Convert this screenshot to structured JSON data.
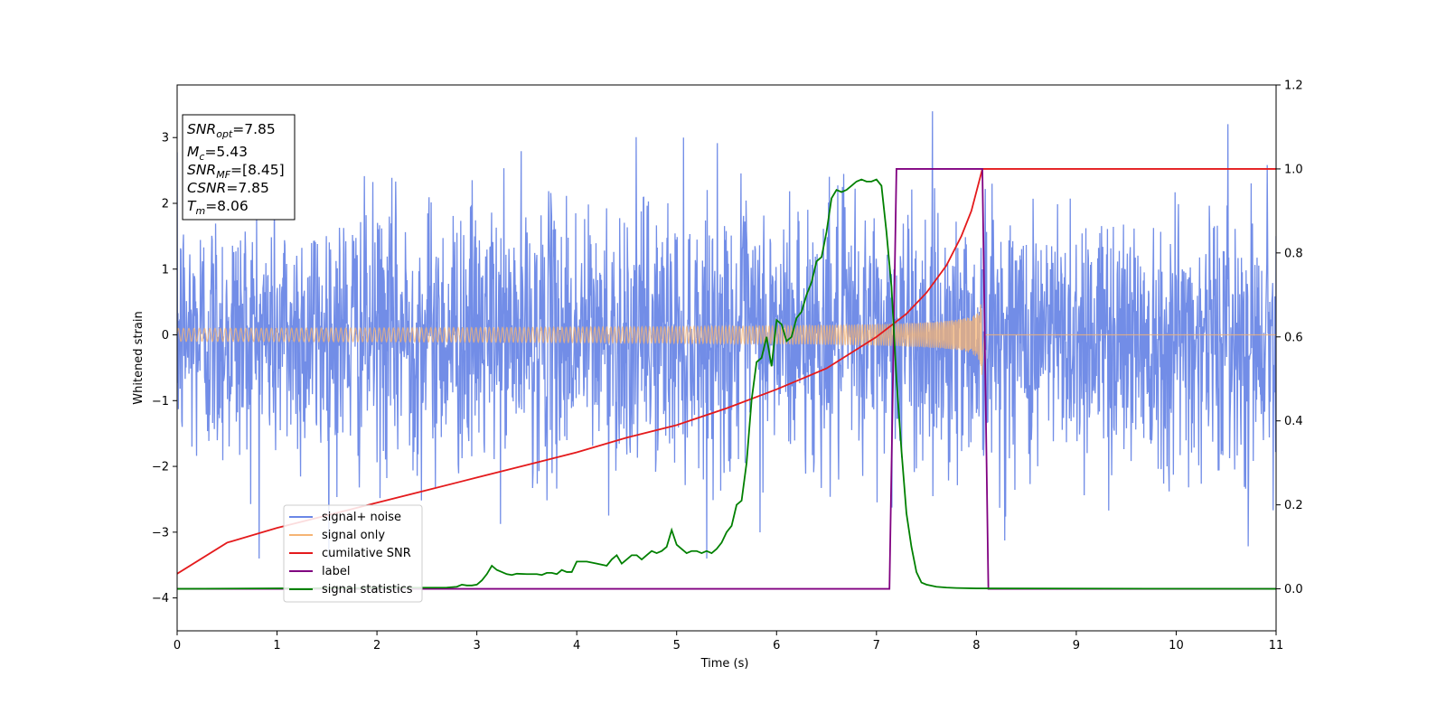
{
  "chart_data": {
    "type": "line",
    "title": "",
    "xlabel": "Time (s)",
    "ylabel": "Whitened strain",
    "xlim": [
      0,
      11
    ],
    "ylim": [
      -4.5,
      3.8
    ],
    "y2lim": [
      -0.1,
      1.2
    ],
    "xticks": [
      "0",
      "1",
      "2",
      "3",
      "4",
      "5",
      "6",
      "7",
      "8",
      "9",
      "10",
      "11"
    ],
    "yticks": [
      "−4",
      "−3",
      "−2",
      "−1",
      "0",
      "1",
      "2",
      "3"
    ],
    "y2ticks": [
      "0.0",
      "0.2",
      "0.4",
      "0.6",
      "0.8",
      "1.0",
      "1.2"
    ],
    "grid": false,
    "legend_position": "lower-left",
    "info_box": {
      "snr_opt": {
        "main": "SNR",
        "sub": "opt",
        "value": "=7.85"
      },
      "mc": {
        "main": "M",
        "sub": "c",
        "value": "=5.43"
      },
      "snr_mf": {
        "main": "SNR",
        "sub": "MF",
        "value": "=[8.45]"
      },
      "csnr": {
        "main": "CSNR",
        "sub": "",
        "value": "=7.85"
      },
      "tm": {
        "main": "T",
        "sub": "m",
        "value": "=8.06"
      }
    },
    "series": [
      {
        "name": "signal+ noise",
        "axis": "left",
        "color": "#6a87e6",
        "description_kind": "noise",
        "amplitude_sigma": 1.0,
        "peak_range": [
          -3.4,
          3.4
        ],
        "x_range": [
          0,
          11
        ]
      },
      {
        "name": "signal only",
        "axis": "left",
        "color": "#f5b474",
        "kind": "chirp",
        "amplitude_start": 0.05,
        "amplitude_end": 0.7,
        "t_start": 0,
        "t_merge": 8.06
      },
      {
        "name": "cumilative SNR",
        "axis": "right",
        "color": "#e41a1c",
        "x": [
          0,
          0.5,
          1,
          1.5,
          2,
          2.5,
          3,
          3.5,
          4,
          4.5,
          5,
          5.5,
          6,
          6.5,
          7,
          7.3,
          7.5,
          7.7,
          7.85,
          7.95,
          8.06,
          9,
          10,
          11
        ],
        "y": [
          0.036,
          0.11,
          0.145,
          0.175,
          0.205,
          0.235,
          0.265,
          0.295,
          0.325,
          0.36,
          0.39,
          0.43,
          0.475,
          0.525,
          0.6,
          0.655,
          0.705,
          0.77,
          0.84,
          0.9,
          1.0,
          1.0,
          1.0,
          1.0
        ]
      },
      {
        "name": "label",
        "axis": "right",
        "color": "#800080",
        "x": [
          0,
          7.13,
          7.2,
          8.06,
          8.12,
          11
        ],
        "y": [
          0,
          0,
          1,
          1,
          0,
          0
        ]
      },
      {
        "name": "signal statistics",
        "axis": "right",
        "color": "#008000",
        "x": [
          0,
          2.7,
          2.8,
          2.85,
          2.9,
          2.95,
          3.0,
          3.05,
          3.1,
          3.15,
          3.2,
          3.25,
          3.3,
          3.35,
          3.4,
          3.5,
          3.6,
          3.65,
          3.7,
          3.75,
          3.8,
          3.85,
          3.9,
          3.95,
          4.0,
          4.1,
          4.2,
          4.3,
          4.35,
          4.4,
          4.45,
          4.5,
          4.55,
          4.6,
          4.65,
          4.7,
          4.75,
          4.8,
          4.85,
          4.9,
          4.95,
          5.0,
          5.05,
          5.1,
          5.15,
          5.2,
          5.25,
          5.3,
          5.35,
          5.4,
          5.45,
          5.5,
          5.55,
          5.6,
          5.65,
          5.7,
          5.75,
          5.8,
          5.85,
          5.9,
          5.95,
          6.0,
          6.05,
          6.1,
          6.15,
          6.2,
          6.25,
          6.3,
          6.35,
          6.4,
          6.45,
          6.5,
          6.55,
          6.6,
          6.65,
          6.7,
          6.75,
          6.8,
          6.85,
          6.9,
          6.95,
          7.0,
          7.05,
          7.1,
          7.15,
          7.2,
          7.25,
          7.3,
          7.35,
          7.4,
          7.45,
          7.5,
          7.6,
          7.7,
          7.8,
          8.0,
          11
        ],
        "y": [
          0.0,
          0.003,
          0.005,
          0.01,
          0.008,
          0.008,
          0.01,
          0.02,
          0.035,
          0.055,
          0.045,
          0.04,
          0.035,
          0.033,
          0.036,
          0.035,
          0.035,
          0.033,
          0.038,
          0.038,
          0.035,
          0.045,
          0.04,
          0.04,
          0.065,
          0.065,
          0.06,
          0.055,
          0.07,
          0.08,
          0.06,
          0.07,
          0.08,
          0.08,
          0.07,
          0.08,
          0.09,
          0.085,
          0.09,
          0.1,
          0.14,
          0.105,
          0.095,
          0.085,
          0.09,
          0.09,
          0.085,
          0.09,
          0.085,
          0.095,
          0.11,
          0.135,
          0.15,
          0.2,
          0.21,
          0.3,
          0.45,
          0.54,
          0.55,
          0.6,
          0.53,
          0.64,
          0.63,
          0.59,
          0.6,
          0.645,
          0.66,
          0.7,
          0.73,
          0.78,
          0.79,
          0.85,
          0.93,
          0.95,
          0.945,
          0.95,
          0.96,
          0.97,
          0.975,
          0.97,
          0.97,
          0.975,
          0.96,
          0.85,
          0.72,
          0.5,
          0.33,
          0.18,
          0.1,
          0.04,
          0.015,
          0.01,
          0.005,
          0.003,
          0.002,
          0.001,
          0.0
        ]
      }
    ]
  }
}
